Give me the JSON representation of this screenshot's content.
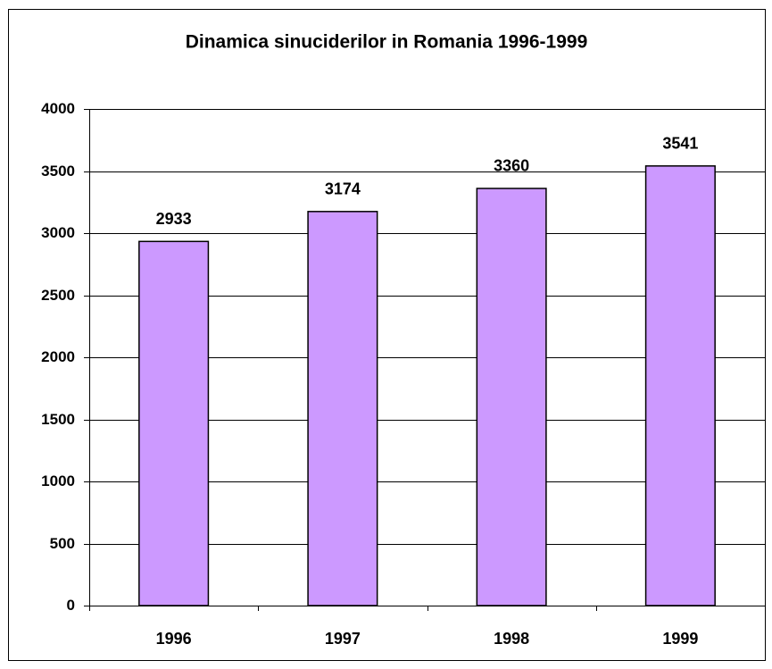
{
  "chart_data": {
    "type": "bar",
    "title": "Dinamica sinuciderilor in Romania 1996-1999",
    "categories": [
      "1996",
      "1997",
      "1998",
      "1999"
    ],
    "values": [
      2933,
      3174,
      3360,
      3541
    ],
    "color": "#cc99ff",
    "ylim": [
      0,
      4000
    ],
    "yticks": [
      0,
      500,
      1000,
      1500,
      2000,
      2500,
      3000,
      3500,
      4000
    ],
    "grid": true
  }
}
